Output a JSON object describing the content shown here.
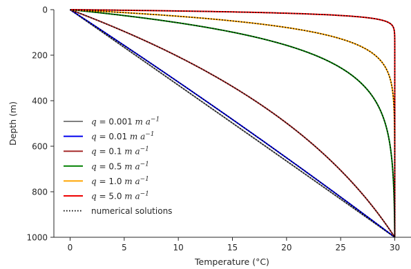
{
  "chart_data": {
    "type": "line",
    "xlabel": "Temperature (°C)",
    "ylabel": "Depth (m)",
    "xlim": [
      -1.5,
      31.5
    ],
    "ylim": [
      1000,
      0
    ],
    "y_inverted": true,
    "xticks": [
      0,
      5,
      10,
      15,
      20,
      25,
      30
    ],
    "yticks": [
      0,
      200,
      400,
      600,
      800,
      1000
    ],
    "grid": false,
    "legend_position": "lower-left",
    "boundary": {
      "t_surface": 0,
      "t_bottom": 30,
      "depth": 1000
    },
    "series": [
      {
        "name": "q = 0.001 m a⁻¹",
        "q_label": "0.001",
        "q": 0.001,
        "color": "#808080",
        "style": "solid"
      },
      {
        "name": "q = 0.01 m a⁻¹",
        "q_label": "0.01",
        "q": 0.01,
        "color": "#0000ee",
        "style": "solid"
      },
      {
        "name": "q = 0.1 m a⁻¹",
        "q_label": "0.1",
        "q": 0.1,
        "color": "#a52a2a",
        "style": "solid"
      },
      {
        "name": "q = 0.5 m a⁻¹",
        "q_label": "0.5",
        "q": 0.5,
        "color": "#008000",
        "style": "solid"
      },
      {
        "name": "q = 1.0 m a⁻¹",
        "q_label": "1.0",
        "q": 1.0,
        "color": "#ffa500",
        "style": "solid"
      },
      {
        "name": "q = 5.0 m a⁻¹",
        "q_label": "5.0",
        "q": 5.0,
        "color": "#ee0000",
        "style": "solid"
      }
    ],
    "numerical": {
      "name": "numerical solutions",
      "color": "#000000",
      "style": "dotted"
    }
  }
}
